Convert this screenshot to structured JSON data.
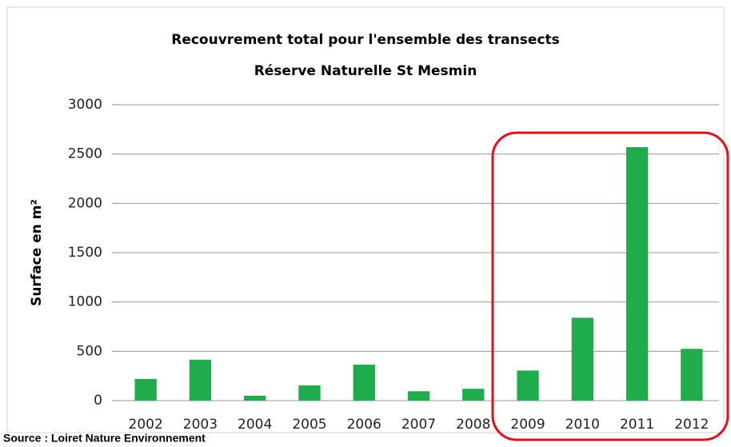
{
  "chart_data": {
    "type": "bar",
    "title": "Recouvrement total pour l'ensemble des transects",
    "subtitle": "Réserve Naturelle St Mesmin",
    "y_label": "Surface en m²",
    "source": "Source : Loiret Nature Environnement",
    "categories": [
      "2002",
      "2003",
      "2004",
      "2005",
      "2006",
      "2007",
      "2008",
      "2009",
      "2010",
      "2011",
      "2012"
    ],
    "values": [
      220,
      415,
      50,
      155,
      365,
      95,
      120,
      305,
      840,
      2570,
      525
    ],
    "color": "#1fac4d",
    "ylim": [
      0,
      3000
    ],
    "yticks": [
      0,
      500,
      1000,
      1500,
      2000,
      2500,
      3000
    ],
    "grid": true
  }
}
